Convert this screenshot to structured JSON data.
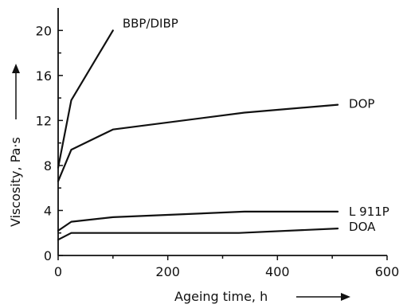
{
  "chart_data": {
    "type": "line",
    "title": "",
    "xlabel": "Ageing time, h",
    "ylabel": "Viscosity, Pa·s",
    "xlim": [
      0,
      600
    ],
    "ylim": [
      0,
      22
    ],
    "x_ticks": [
      0,
      200,
      400,
      600
    ],
    "x_tick_labels": [
      "0",
      "200",
      "400",
      "600"
    ],
    "y_ticks": [
      0,
      4,
      8,
      12,
      16,
      20
    ],
    "y_tick_labels": [
      "0",
      "4",
      "8",
      "12",
      "16",
      "20"
    ],
    "grid": false,
    "legend": "none",
    "series": [
      {
        "name": "BBP/DIBP",
        "x": [
          0,
          24,
          100
        ],
        "y": [
          7.8,
          13.8,
          20.0
        ]
      },
      {
        "name": "DOP",
        "x": [
          0,
          24,
          100,
          340,
          510
        ],
        "y": [
          6.6,
          9.4,
          11.2,
          12.7,
          13.4
        ]
      },
      {
        "name": "L 911P",
        "x": [
          0,
          24,
          100,
          340,
          510
        ],
        "y": [
          2.2,
          3.0,
          3.4,
          3.9,
          3.9
        ]
      },
      {
        "name": "DOA",
        "x": [
          0,
          24,
          100,
          330,
          510
        ],
        "y": [
          1.4,
          2.0,
          2.0,
          2.0,
          2.4
        ]
      }
    ]
  }
}
